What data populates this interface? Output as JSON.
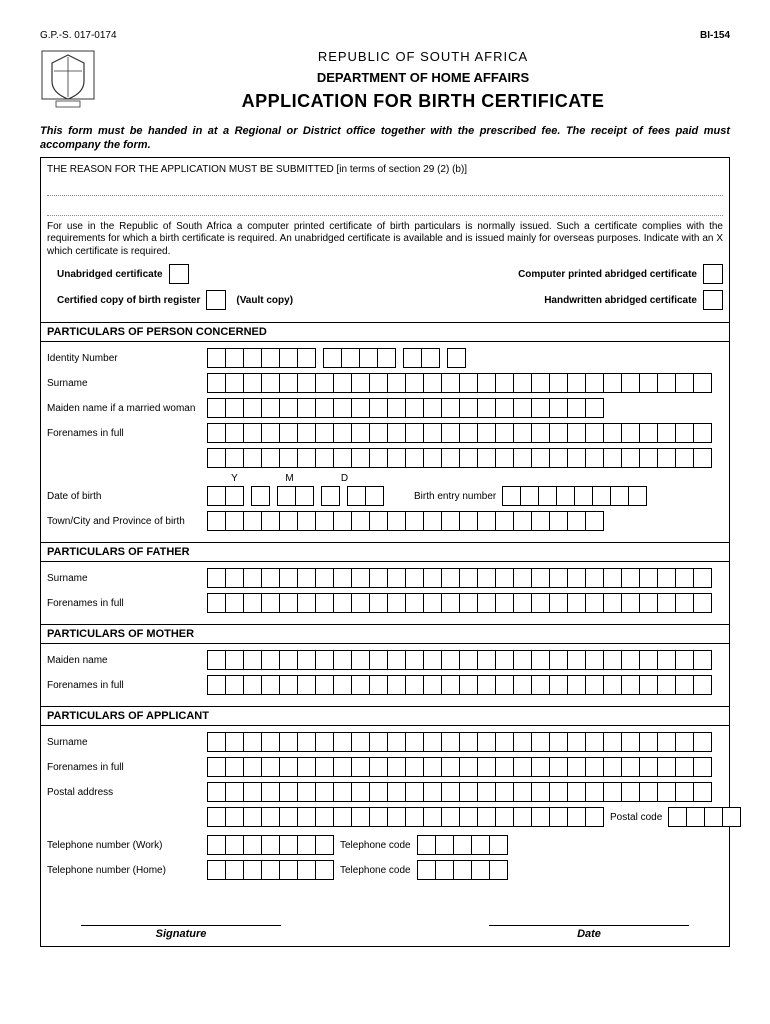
{
  "meta": {
    "code_left": "G.P.-S. 017-0174",
    "code_right": "BI-154"
  },
  "header": {
    "country": "REPUBLIC OF SOUTH AFRICA",
    "dept": "DEPARTMENT OF HOME AFFAIRS",
    "title": "APPLICATION FOR BIRTH CERTIFICATE"
  },
  "notice": "This form must be handed in at a Regional or District office together with the prescribed fee. The receipt of fees paid must accompany the form.",
  "reason": {
    "heading": "THE REASON FOR THE APPLICATION MUST BE SUBMITTED [in terms of section 29 (2) (b)]"
  },
  "cert_text": "For use in the Republic of South Africa a computer printed certificate of birth particulars is normally issued. Such a certificate complies with the requirements for which a birth certificate is required. An unabridged certificate is available and is issued mainly for overseas purposes. Indicate with an X which certificate is required.",
  "cert": {
    "unabridged": "Unabridged certificate",
    "computer": "Computer printed abridged certificate",
    "certified": "Certified copy of birth register",
    "vault": "(Vault copy)",
    "handwritten": "Handwritten abridged certificate"
  },
  "s1": {
    "title": "PARTICULARS OF PERSON CONCERNED",
    "identity": "Identity Number",
    "surname": "Surname",
    "maiden": "Maiden name if a married woman",
    "forenames": "Forenames in full",
    "y": "Y",
    "m": "M",
    "d": "D",
    "dob": "Date of birth",
    "entry": "Birth entry number",
    "town": "Town/City and Province of birth"
  },
  "s2": {
    "title": "PARTICULARS OF FATHER",
    "surname": "Surname",
    "forenames": "Forenames in full"
  },
  "s3": {
    "title": "PARTICULARS OF MOTHER",
    "maiden": "Maiden name",
    "forenames": "Forenames in full"
  },
  "s4": {
    "title": "PARTICULARS OF APPLICANT",
    "surname": "Surname",
    "forenames": "Forenames in full",
    "postal": "Postal address",
    "postcode": "Postal code",
    "tel_work": "Telephone number (Work)",
    "tel_home": "Telephone number (Home)",
    "tel_code": "Telephone code"
  },
  "footer": {
    "sig": "Signature",
    "date": "Date"
  }
}
